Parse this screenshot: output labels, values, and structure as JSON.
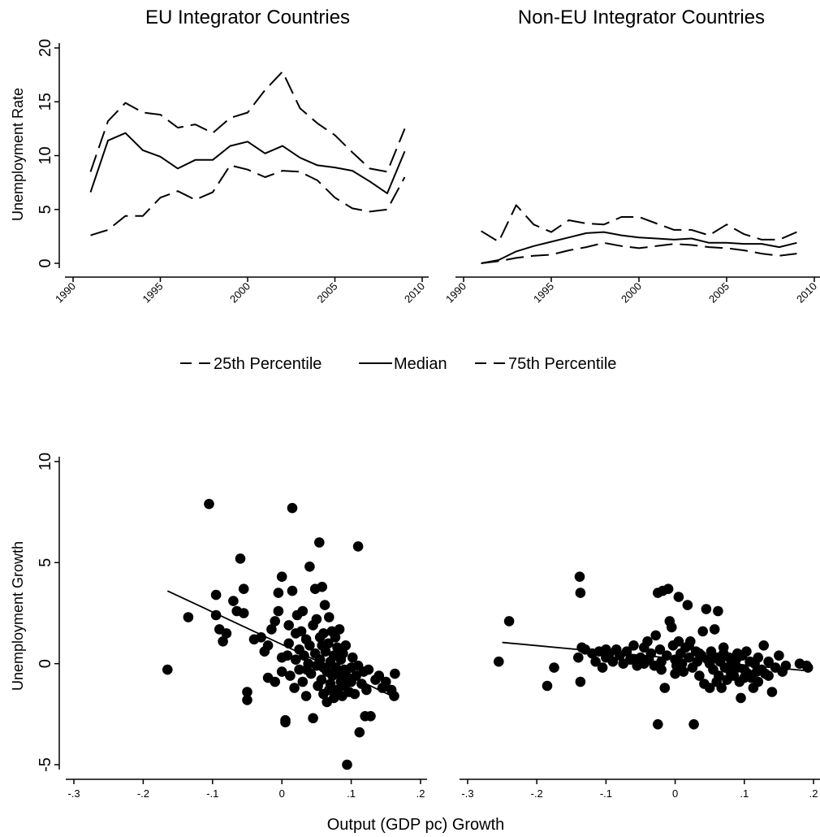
{
  "figure": {
    "legend": {
      "items": [
        {
          "label": "25th Percentile",
          "dash": "dashed"
        },
        {
          "label": "Median",
          "dash": "solid"
        },
        {
          "label": "75th Percentile",
          "dash": "dashed"
        }
      ]
    },
    "top_ylabel": "Unemployment Rate",
    "bottom_ylabel": "Unemployment Growth",
    "bottom_xlabel": "Output (GDP pc) Growth"
  },
  "chart_data": [
    {
      "type": "line",
      "title": "EU Integrator Countries",
      "xlabel": "",
      "ylabel": "Unemployment Rate",
      "xlim": [
        1990,
        2010
      ],
      "ylim": [
        0,
        20
      ],
      "xticks": [
        "1990",
        "1995",
        "2000",
        "2005",
        "2010"
      ],
      "yticks": [
        "0",
        "5",
        "10",
        "15",
        "20"
      ],
      "x": [
        1991,
        1992,
        1993,
        1994,
        1995,
        1996,
        1997,
        1998,
        1999,
        2000,
        2001,
        2002,
        2003,
        2004,
        2005,
        2006,
        2007,
        2008,
        2009
      ],
      "series": [
        {
          "name": "25th Percentile",
          "dash": "dashed",
          "values": [
            2.6,
            3.1,
            4.4,
            4.4,
            6.1,
            6.7,
            5.9,
            6.6,
            9.1,
            8.7,
            8.0,
            8.6,
            8.5,
            7.7,
            6.1,
            5.1,
            4.8,
            5.0,
            8.0
          ]
        },
        {
          "name": "Median",
          "dash": "solid",
          "values": [
            6.6,
            11.4,
            12.1,
            10.5,
            9.9,
            8.8,
            9.6,
            9.6,
            10.9,
            11.3,
            10.2,
            10.9,
            9.8,
            9.1,
            8.9,
            8.6,
            7.6,
            6.5,
            10.4
          ]
        },
        {
          "name": "75th Percentile",
          "dash": "dashed",
          "values": [
            8.5,
            13.2,
            14.9,
            14.0,
            13.8,
            12.6,
            12.9,
            12.1,
            13.5,
            14.0,
            16.1,
            17.8,
            14.4,
            13.0,
            11.9,
            10.3,
            8.8,
            8.5,
            12.5
          ]
        }
      ]
    },
    {
      "type": "line",
      "title": "Non-EU Integrator Countries",
      "xlabel": "",
      "ylabel": "",
      "xlim": [
        1990,
        2010
      ],
      "ylim": [
        0,
        20
      ],
      "xticks": [
        "1990",
        "1995",
        "2000",
        "2005",
        "2010"
      ],
      "x": [
        1991,
        1992,
        1993,
        1994,
        1995,
        1996,
        1997,
        1998,
        1999,
        2000,
        2001,
        2002,
        2003,
        2004,
        2005,
        2006,
        2007,
        2008,
        2009
      ],
      "series": [
        {
          "name": "25th Percentile",
          "dash": "dashed",
          "values": [
            0.0,
            0.2,
            0.5,
            0.7,
            0.8,
            1.2,
            1.5,
            1.9,
            1.6,
            1.4,
            1.6,
            1.8,
            1.7,
            1.5,
            1.4,
            1.2,
            0.9,
            0.7,
            0.9
          ]
        },
        {
          "name": "Median",
          "dash": "solid",
          "values": [
            0.0,
            0.3,
            1.1,
            1.6,
            2.0,
            2.4,
            2.8,
            2.9,
            2.6,
            2.4,
            2.3,
            2.2,
            2.3,
            1.9,
            1.9,
            1.8,
            1.8,
            1.5,
            1.9
          ]
        },
        {
          "name": "75th Percentile",
          "dash": "dashed",
          "values": [
            3.0,
            2.0,
            5.4,
            3.6,
            2.9,
            4.0,
            3.7,
            3.6,
            4.3,
            4.3,
            3.7,
            3.1,
            3.1,
            2.6,
            3.6,
            2.7,
            2.2,
            2.2,
            2.9
          ]
        }
      ]
    },
    {
      "type": "scatter",
      "title": "",
      "xlabel": "Output (GDP pc) Growth",
      "ylabel": "Unemployment Growth",
      "xlim": [
        -0.3,
        0.2
      ],
      "ylim": [
        -5,
        10
      ],
      "xticks": [
        "-.3",
        "-.2",
        "-.1",
        "0",
        ".1",
        ".2"
      ],
      "yticks": [
        "-5",
        "0",
        "5",
        "10"
      ],
      "fit": {
        "x": [
          -0.165,
          0.165
        ],
        "y": [
          3.6,
          -1.7
        ]
      },
      "points": [
        [
          -0.165,
          -0.3
        ],
        [
          -0.135,
          2.3
        ],
        [
          -0.105,
          7.9
        ],
        [
          -0.095,
          3.4
        ],
        [
          -0.095,
          2.4
        ],
        [
          -0.09,
          1.7
        ],
        [
          -0.085,
          1.1
        ],
        [
          -0.08,
          1.5
        ],
        [
          -0.07,
          3.1
        ],
        [
          -0.065,
          2.6
        ],
        [
          -0.06,
          5.2
        ],
        [
          -0.055,
          3.7
        ],
        [
          -0.055,
          2.5
        ],
        [
          -0.05,
          -1.4
        ],
        [
          -0.05,
          -1.8
        ],
        [
          -0.04,
          1.2
        ],
        [
          -0.03,
          1.3
        ],
        [
          -0.025,
          0.6
        ],
        [
          -0.02,
          0.9
        ],
        [
          -0.02,
          -0.7
        ],
        [
          -0.015,
          1.7
        ],
        [
          -0.01,
          2.1
        ],
        [
          -0.01,
          -0.9
        ],
        [
          -0.005,
          2.6
        ],
        [
          -0.005,
          3.5
        ],
        [
          0.0,
          4.3
        ],
        [
          0.0,
          0.3
        ],
        [
          0.0,
          -0.4
        ],
        [
          0.005,
          -2.9
        ],
        [
          0.005,
          -2.8
        ],
        [
          0.01,
          1.9
        ],
        [
          0.01,
          1.0
        ],
        [
          0.012,
          -0.6
        ],
        [
          0.015,
          3.6
        ],
        [
          0.015,
          7.7
        ],
        [
          0.018,
          -1.2
        ],
        [
          0.02,
          0.2
        ],
        [
          0.02,
          1.5
        ],
        [
          0.022,
          2.4
        ],
        [
          0.025,
          0.7
        ],
        [
          0.025,
          -0.3
        ],
        [
          0.028,
          1.6
        ],
        [
          0.03,
          2.6
        ],
        [
          0.03,
          -0.9
        ],
        [
          0.032,
          0.4
        ],
        [
          0.035,
          1.2
        ],
        [
          0.035,
          -1.6
        ],
        [
          0.038,
          0.0
        ],
        [
          0.04,
          4.8
        ],
        [
          0.04,
          0.9
        ],
        [
          0.042,
          -0.5
        ],
        [
          0.045,
          1.9
        ],
        [
          0.045,
          -2.7
        ],
        [
          0.048,
          0.5
        ],
        [
          0.048,
          3.7
        ],
        [
          0.05,
          2.2
        ],
        [
          0.05,
          -0.1
        ],
        [
          0.052,
          -1.1
        ],
        [
          0.054,
          6.0
        ],
        [
          0.055,
          1.3
        ],
        [
          0.055,
          0.2
        ],
        [
          0.057,
          -0.8
        ],
        [
          0.058,
          3.8
        ],
        [
          0.06,
          1.5
        ],
        [
          0.06,
          -0.2
        ],
        [
          0.06,
          -1.5
        ],
        [
          0.062,
          2.9
        ],
        [
          0.063,
          0.6
        ],
        [
          0.065,
          -0.4
        ],
        [
          0.065,
          -1.9
        ],
        [
          0.067,
          1.0
        ],
        [
          0.068,
          2.3
        ],
        [
          0.07,
          0.1
        ],
        [
          0.07,
          -1.0
        ],
        [
          0.072,
          1.6
        ],
        [
          0.073,
          -0.6
        ],
        [
          0.075,
          0.4
        ],
        [
          0.075,
          -1.7
        ],
        [
          0.077,
          1.3
        ],
        [
          0.078,
          -0.2
        ],
        [
          0.08,
          0.8
        ],
        [
          0.08,
          -1.3
        ],
        [
          0.082,
          -0.5
        ],
        [
          0.083,
          1.7
        ],
        [
          0.085,
          0.2
        ],
        [
          0.085,
          -0.9
        ],
        [
          0.087,
          -1.6
        ],
        [
          0.088,
          0.5
        ],
        [
          0.09,
          -0.3
        ],
        [
          0.09,
          -1.1
        ],
        [
          0.092,
          0.9
        ],
        [
          0.094,
          -5.0
        ],
        [
          0.095,
          -0.7
        ],
        [
          0.097,
          -1.4
        ],
        [
          0.1,
          -0.2
        ],
        [
          0.1,
          -0.9
        ],
        [
          0.102,
          0.3
        ],
        [
          0.105,
          -1.5
        ],
        [
          0.107,
          -0.6
        ],
        [
          0.11,
          5.8
        ],
        [
          0.11,
          -0.1
        ],
        [
          0.112,
          -3.4
        ],
        [
          0.115,
          -1.0
        ],
        [
          0.118,
          -0.4
        ],
        [
          0.12,
          -2.6
        ],
        [
          0.122,
          -1.3
        ],
        [
          0.125,
          -0.3
        ],
        [
          0.128,
          -2.6
        ],
        [
          0.135,
          -0.8
        ],
        [
          0.14,
          -0.6
        ],
        [
          0.145,
          -1.2
        ],
        [
          0.15,
          -0.9
        ],
        [
          0.158,
          -1.3
        ],
        [
          0.162,
          -1.6
        ],
        [
          0.163,
          -0.5
        ],
        [
          0.008,
          0.4
        ],
        [
          0.036,
          -0.3
        ],
        [
          0.058,
          0.9
        ],
        [
          0.068,
          -1.3
        ],
        [
          0.092,
          -0.4
        ]
      ]
    },
    {
      "type": "scatter",
      "title": "",
      "xlabel": "",
      "ylabel": "",
      "xlim": [
        -0.3,
        0.2
      ],
      "ylim": [
        -5,
        10
      ],
      "xticks": [
        "-.3",
        "-.2",
        "-.1",
        "0",
        ".1",
        ".2"
      ],
      "fit": {
        "x": [
          -0.25,
          0.19
        ],
        "y": [
          1.05,
          -0.35
        ]
      },
      "points": [
        [
          -0.255,
          0.1
        ],
        [
          -0.24,
          2.1
        ],
        [
          -0.185,
          -1.1
        ],
        [
          -0.175,
          -0.2
        ],
        [
          -0.14,
          0.3
        ],
        [
          -0.138,
          4.3
        ],
        [
          -0.137,
          3.5
        ],
        [
          -0.137,
          -0.9
        ],
        [
          -0.135,
          0.8
        ],
        [
          -0.13,
          0.7
        ],
        [
          -0.12,
          0.5
        ],
        [
          -0.115,
          0.1
        ],
        [
          -0.11,
          0.6
        ],
        [
          -0.105,
          -0.2
        ],
        [
          -0.1,
          0.3
        ],
        [
          -0.095,
          0.5
        ],
        [
          -0.09,
          0.1
        ],
        [
          -0.085,
          0.7
        ],
        [
          -0.08,
          0.4
        ],
        [
          -0.075,
          0.0
        ],
        [
          -0.07,
          0.6
        ],
        [
          -0.065,
          0.2
        ],
        [
          -0.06,
          0.9
        ],
        [
          -0.055,
          -0.1
        ],
        [
          -0.05,
          0.3
        ],
        [
          -0.045,
          0.8
        ],
        [
          -0.04,
          1.1
        ],
        [
          -0.038,
          0.2
        ],
        [
          -0.035,
          0.5
        ],
        [
          -0.03,
          -0.1
        ],
        [
          -0.028,
          1.4
        ],
        [
          -0.025,
          3.5
        ],
        [
          -0.025,
          -3.0
        ],
        [
          -0.022,
          0.7
        ],
        [
          -0.02,
          0.1
        ],
        [
          -0.018,
          3.6
        ],
        [
          -0.015,
          -1.2
        ],
        [
          -0.012,
          0.4
        ],
        [
          -0.01,
          3.7
        ],
        [
          -0.008,
          2.1
        ],
        [
          -0.005,
          1.8
        ],
        [
          -0.003,
          0.9
        ],
        [
          0.0,
          0.2
        ],
        [
          0.002,
          -0.1
        ],
        [
          0.005,
          3.3
        ],
        [
          0.005,
          1.1
        ],
        [
          0.008,
          0.5
        ],
        [
          0.01,
          0.0
        ],
        [
          0.012,
          -0.4
        ],
        [
          0.015,
          0.8
        ],
        [
          0.018,
          2.9
        ],
        [
          0.02,
          0.3
        ],
        [
          0.022,
          1.1
        ],
        [
          0.025,
          -0.2
        ],
        [
          0.027,
          -3.0
        ],
        [
          0.03,
          0.6
        ],
        [
          0.032,
          0.1
        ],
        [
          0.035,
          -0.6
        ],
        [
          0.038,
          0.4
        ],
        [
          0.04,
          1.6
        ],
        [
          0.042,
          -1.0
        ],
        [
          0.045,
          2.7
        ],
        [
          0.047,
          0.2
        ],
        [
          0.05,
          -1.2
        ],
        [
          0.052,
          0.6
        ],
        [
          0.055,
          -0.3
        ],
        [
          0.057,
          1.7
        ],
        [
          0.06,
          0.3
        ],
        [
          0.062,
          2.6
        ],
        [
          0.063,
          -0.6
        ],
        [
          0.065,
          0.1
        ],
        [
          0.067,
          -1.2
        ],
        [
          0.07,
          0.5
        ],
        [
          0.072,
          -0.2
        ],
        [
          0.075,
          -0.8
        ],
        [
          0.078,
          0.3
        ],
        [
          0.08,
          -0.4
        ],
        [
          0.082,
          0.1
        ],
        [
          0.085,
          -0.6
        ],
        [
          0.088,
          0.2
        ],
        [
          0.09,
          -0.2
        ],
        [
          0.093,
          -0.9
        ],
        [
          0.095,
          -1.7
        ],
        [
          0.097,
          0.4
        ],
        [
          0.1,
          -0.3
        ],
        [
          0.103,
          0.6
        ],
        [
          0.105,
          -0.5
        ],
        [
          0.108,
          0.1
        ],
        [
          0.11,
          -0.7
        ],
        [
          0.113,
          -1.2
        ],
        [
          0.115,
          0.0
        ],
        [
          0.118,
          -0.4
        ],
        [
          0.12,
          0.3
        ],
        [
          0.125,
          -0.3
        ],
        [
          0.128,
          0.9
        ],
        [
          0.13,
          -0.5
        ],
        [
          0.135,
          0.1
        ],
        [
          0.14,
          -1.4
        ],
        [
          0.145,
          -0.2
        ],
        [
          0.15,
          0.4
        ],
        [
          0.155,
          -0.4
        ],
        [
          0.16,
          -0.1
        ],
        [
          0.18,
          0.0
        ],
        [
          0.19,
          -0.1
        ],
        [
          0.192,
          -0.2
        ],
        [
          -0.1,
          0.7
        ],
        [
          -0.06,
          0.2
        ],
        [
          -0.02,
          -0.3
        ],
        [
          0.02,
          0.9
        ],
        [
          0.05,
          0.0
        ],
        [
          0.07,
          0.8
        ],
        [
          0.09,
          0.5
        ],
        [
          0.1,
          -0.7
        ],
        [
          0.12,
          -0.9
        ],
        [
          0.135,
          -0.6
        ],
        [
          -0.045,
          0.0
        ],
        [
          0.0,
          -0.5
        ],
        [
          0.035,
          0.5
        ],
        [
          0.06,
          -0.9
        ],
        [
          0.085,
          -0.1
        ]
      ]
    }
  ]
}
